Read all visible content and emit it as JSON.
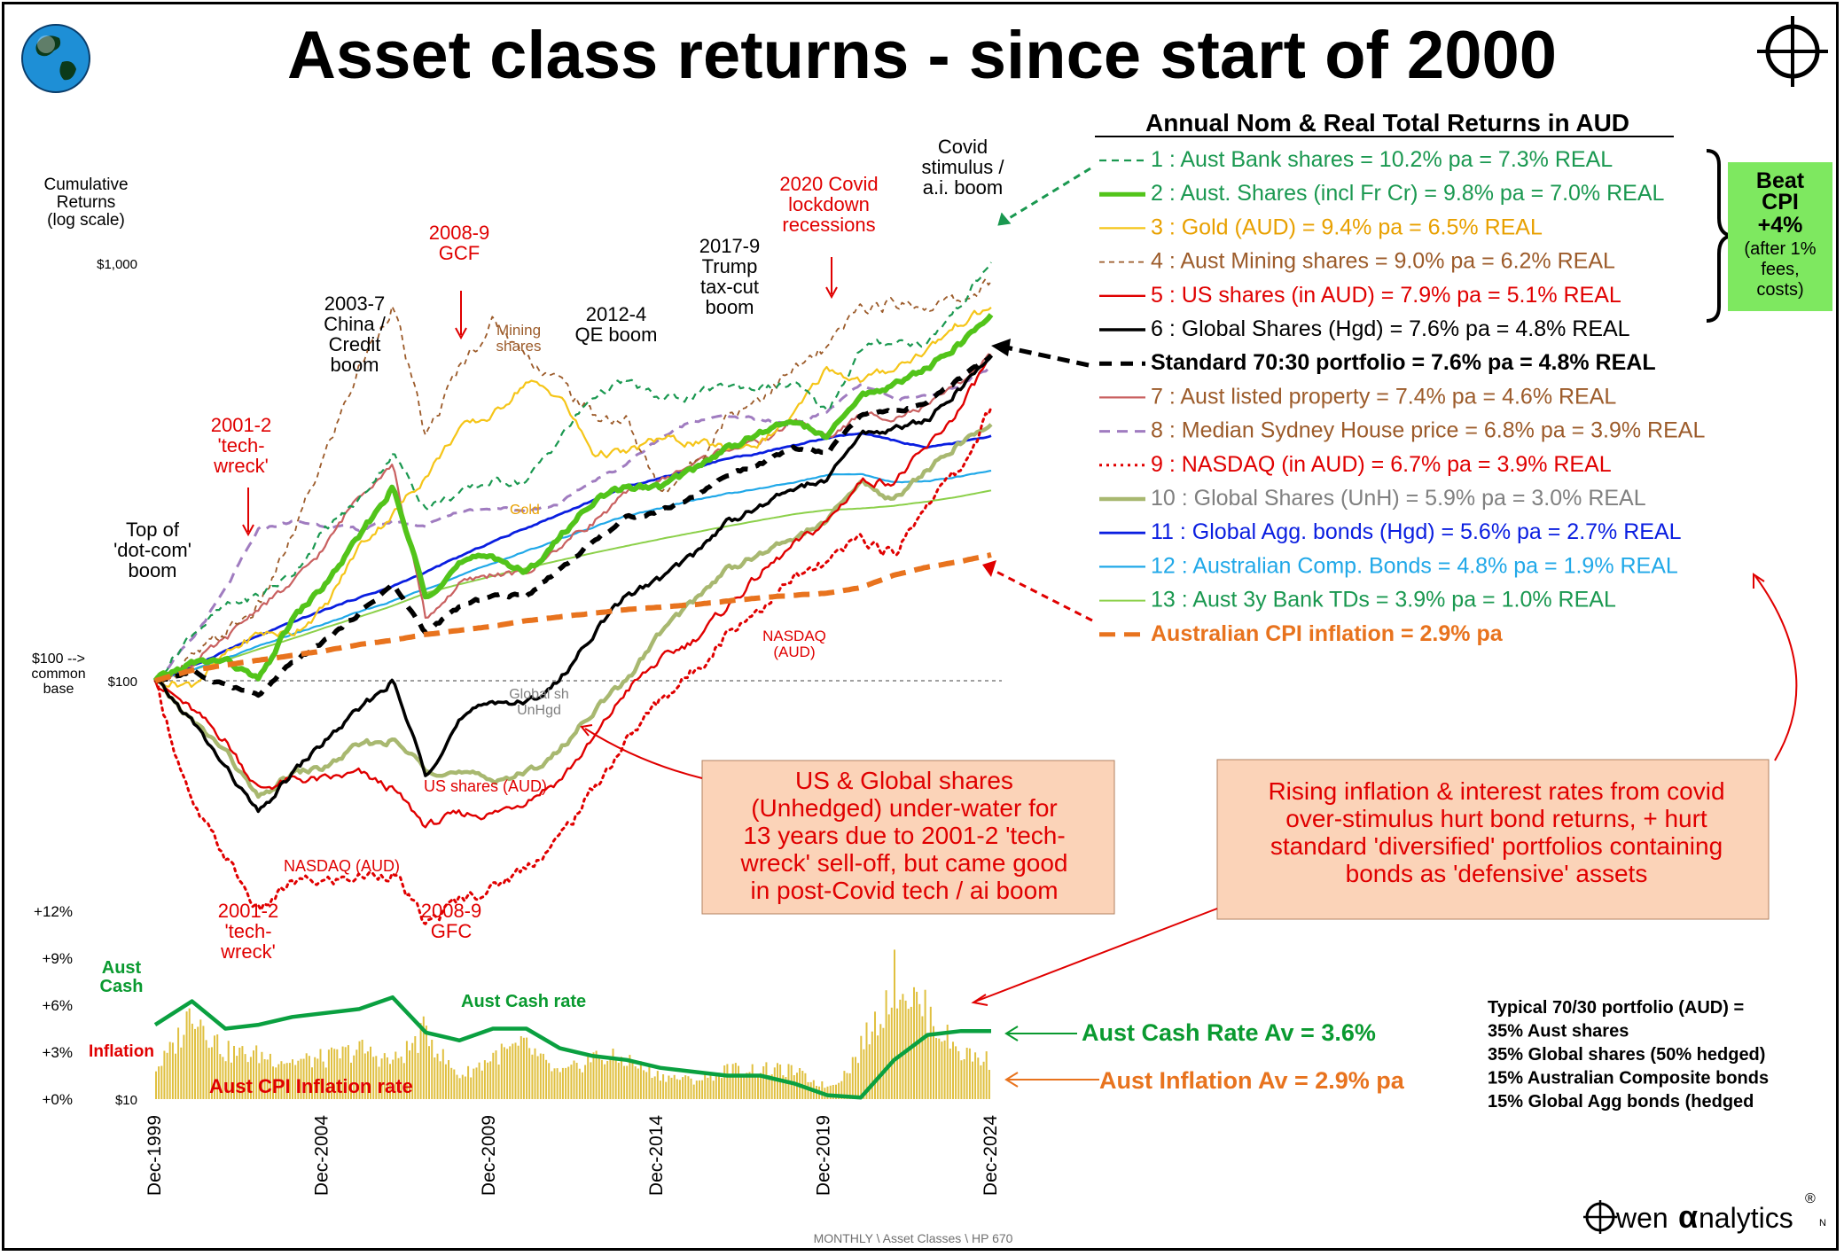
{
  "title": "Asset class returns - since start of 2000",
  "legend_title": "Annual Nom & Real Total Returns in AUD",
  "colors": {
    "bank": "#1a9850",
    "aus_shares": "#52c41a",
    "gold": "#f5c518",
    "mining": "#9c5b2a",
    "us": "#e00000",
    "global_hgd": "#000000",
    "portfolio": "#000000",
    "property": "#c96060",
    "house": "#a07cc0",
    "nasdaq": "#e00000",
    "global_unh": "#a8b870",
    "agg_bonds": "#0a1ee0",
    "comp_bonds": "#20a8e8",
    "td": "#8cd04a",
    "cpi": "#e8731e",
    "cash": "#0aa040",
    "infl_bars": "#e0c040",
    "red_text": "#e00000",
    "orange_text": "#e8731e",
    "beat_box": "#7ee860",
    "note_box": "#fbd3b8"
  },
  "legend": [
    {
      "text": "1 : Aust Bank shares =  10.2% pa = 7.3% REAL",
      "color": "#1a9850",
      "style": "dash",
      "bold": false
    },
    {
      "text": "2 : Aust. Shares (incl Fr Cr) =  9.8% pa = 7.0% REAL",
      "color": "#1a9850",
      "style": "thick",
      "bold": false
    },
    {
      "text": "3 : Gold (AUD) =  9.4% pa = 6.5% REAL",
      "color": "#e8a000",
      "style": "solid",
      "bold": false
    },
    {
      "text": "4 : Aust Mining shares =  9.0% pa = 6.2% REAL",
      "color": "#9c5b2a",
      "style": "dash",
      "bold": false
    },
    {
      "text": "5 : US shares (in AUD) =  7.9% pa = 5.1% REAL",
      "color": "#e00000",
      "style": "solid",
      "bold": false
    },
    {
      "text": "6 : Global Shares (Hgd) =  7.6% pa = 4.8% REAL",
      "color": "#000000",
      "style": "solid",
      "bold": false
    },
    {
      "text": "Standard 70:30 portfolio =  7.6% pa =  4.8% REAL",
      "color": "#000000",
      "style": "bolddash",
      "bold": true
    },
    {
      "text": "7 : Aust listed property =  7.4% pa = 4.6% REAL",
      "color": "#9c5b2a",
      "style": "solid",
      "bold": false
    },
    {
      "text": "8 : Median Sydney House price =  6.8% pa = 3.9% REAL",
      "color": "#9c5b2a",
      "style": "dashpurple",
      "bold": false
    },
    {
      "text": "9 : NASDAQ (in AUD) =  6.7% pa = 3.9% REAL",
      "color": "#e00000",
      "style": "dot",
      "bold": false
    },
    {
      "text": "10 : Global Shares (UnH) =  5.9% pa = 3.0% REAL",
      "color": "#808080",
      "style": "thick",
      "bold": false
    },
    {
      "text": "11 : Global Agg. bonds (Hgd) =  5.6% pa = 2.7% REAL",
      "color": "#0a1ee0",
      "style": "solid",
      "bold": false
    },
    {
      "text": "12 : Australian Comp. Bonds =  4.8% pa = 1.9% REAL",
      "color": "#20a8e8",
      "style": "solid",
      "bold": false
    },
    {
      "text": "13 : Aust 3y Bank TDs =  3.9% pa = 1.0% REAL",
      "color": "#1a9850",
      "style": "solid",
      "bold": false
    },
    {
      "text": "Australian CPI inflation =  2.9% pa",
      "color": "#e8731e",
      "style": "cpi",
      "bold": true
    }
  ],
  "beat_box": [
    "Beat",
    "CPI",
    "+4%",
    "(after 1%",
    "fees,",
    "costs)"
  ],
  "y_axis_title": [
    "Cumulative",
    "Returns",
    "(log scale)"
  ],
  "y_ticks": [
    "$1,000",
    "$100",
    "$10"
  ],
  "base_note": [
    "$100 -->",
    "common",
    "base"
  ],
  "rate_ticks": [
    "+12%",
    "+9%",
    "+6%",
    "+3%",
    "+0%"
  ],
  "x_ticks": [
    "Dec-1999",
    "Dec-2004",
    "Dec-2009",
    "Dec-2014",
    "Dec-2019",
    "Dec-2024"
  ],
  "annotations": {
    "dotcom": [
      "Top of",
      "'dot-com'",
      "boom"
    ],
    "techwreck_top": [
      "2001-2",
      "'tech-",
      "wreck'"
    ],
    "china": [
      "2003-7",
      "China /",
      "Credit",
      "boom"
    ],
    "gcf": [
      "2008-9",
      "GCF"
    ],
    "mining": [
      "Mining",
      "shares"
    ],
    "qe": [
      "2012-4",
      "QE boom"
    ],
    "trump": [
      "2017-9",
      "Trump",
      "tax-cut",
      "boom"
    ],
    "covid_rec": [
      "2020 Covid",
      "lockdown",
      "recessions"
    ],
    "covid_boom": [
      "Covid",
      "stimulus /",
      "a.i. boom"
    ],
    "gold_label": "Gold",
    "global_unhgd": [
      "Global sh",
      "UnHgd"
    ],
    "us_shares": "US shares (AUD)",
    "nasdaq_low": "NASDAQ  (AUD)",
    "nasdaq_high": [
      "NASDAQ",
      "(AUD)"
    ],
    "techwreck_bottom": [
      "2001-2",
      "'tech-",
      "wreck'"
    ],
    "gfc_bottom": [
      "2008-9",
      "GFC"
    ],
    "aust_cash": [
      "Aust",
      "Cash"
    ],
    "inflation_word": "Inflation",
    "cash_rate_label": "Aust  Cash rate",
    "cpi_rate_label": "Aust CPI Inflation rate"
  },
  "note_us": [
    "US & Global shares",
    "(Unhedged)  under-water for",
    "13 years  due to 2001-2 'tech-",
    "wreck' sell-off,  but came good",
    "in post-Covid tech / ai boom"
  ],
  "note_bonds": [
    "Rising inflation & interest rates from covid",
    "over-stimulus hurt bond returns, + hurt",
    "standard 'diversified' portfolios containing",
    "bonds as 'defensive' assets"
  ],
  "cash_av": "Aust Cash Rate  Av =  3.6%",
  "infl_av": "Aust Inflation  Av =  2.9% pa",
  "portfolio_def": [
    "Typical 70/30 portfolio (AUD) =",
    " 35%  Aust shares",
    " 35%  Global shares (50% hedged)",
    " 15%  Australian Composite bonds",
    " 15%  Global Agg bonds (hedged"
  ],
  "footer": "MONTHLY  \\ Asset Classes \\ HP 670",
  "brand": "wen",
  "brand_alpha": "α",
  "brand_rest": "nalytics",
  "brand_reg": "®",
  "brand_n": "N",
  "chart_data": {
    "type": "line",
    "title": "Asset class returns - since start of 2000",
    "ylabel": "Cumulative Returns (log scale)",
    "y_scale": "log",
    "ylim": [
      10,
      1000
    ],
    "x": [
      1999.9,
      2001,
      2002,
      2003,
      2004,
      2005,
      2006,
      2007,
      2008,
      2009,
      2010,
      2011,
      2012,
      2013,
      2014,
      2015,
      2016,
      2017,
      2018,
      2019,
      2020,
      2021,
      2022,
      2023,
      2024,
      2024.9
    ],
    "series": [
      {
        "key": "bank",
        "values": [
          100,
          130,
          150,
          160,
          180,
          230,
          270,
          350,
          260,
          280,
          300,
          300,
          380,
          480,
          520,
          470,
          480,
          510,
          500,
          510,
          440,
          620,
          650,
          640,
          800,
          1000
        ]
      },
      {
        "key": "aus_shares",
        "values": [
          100,
          110,
          112,
          100,
          140,
          170,
          220,
          290,
          160,
          190,
          200,
          180,
          220,
          270,
          290,
          290,
          320,
          360,
          390,
          420,
          380,
          480,
          510,
          560,
          640,
          750
        ]
      },
      {
        "key": "gold",
        "values": [
          100,
          98,
          115,
          130,
          130,
          150,
          210,
          250,
          310,
          400,
          430,
          520,
          480,
          350,
          350,
          380,
          370,
          360,
          370,
          430,
          560,
          520,
          560,
          620,
          720,
          780
        ]
      },
      {
        "key": "mining",
        "values": [
          100,
          112,
          130,
          150,
          220,
          350,
          560,
          800,
          380,
          560,
          720,
          600,
          520,
          430,
          420,
          280,
          330,
          430,
          480,
          550,
          620,
          780,
          800,
          790,
          810,
          900
        ]
      },
      {
        "key": "us",
        "values": [
          100,
          85,
          72,
          55,
          58,
          58,
          60,
          55,
          45,
          48,
          48,
          52,
          58,
          72,
          95,
          112,
          125,
          150,
          180,
          210,
          240,
          300,
          300,
          360,
          450,
          600
        ]
      },
      {
        "key": "global_hgd",
        "values": [
          100,
          80,
          62,
          48,
          60,
          72,
          85,
          100,
          60,
          80,
          90,
          88,
          100,
          130,
          160,
          175,
          200,
          240,
          260,
          290,
          300,
          390,
          400,
          420,
          500,
          600
        ]
      },
      {
        "key": "portfolio",
        "values": [
          100,
          105,
          98,
          92,
          110,
          125,
          145,
          170,
          130,
          150,
          160,
          160,
          185,
          215,
          245,
          255,
          275,
          310,
          330,
          360,
          350,
          430,
          440,
          460,
          530,
          600
        ]
      },
      {
        "key": "property",
        "values": [
          100,
          110,
          125,
          150,
          170,
          210,
          280,
          330,
          140,
          170,
          180,
          180,
          210,
          240,
          280,
          300,
          330,
          360,
          370,
          420,
          380,
          430,
          430,
          450,
          520,
          600
        ]
      },
      {
        "key": "house",
        "values": [
          100,
          125,
          165,
          230,
          240,
          235,
          230,
          240,
          235,
          255,
          260,
          255,
          265,
          300,
          330,
          380,
          420,
          430,
          420,
          410,
          440,
          510,
          470,
          480,
          510,
          560
        ]
      },
      {
        "key": "nasdaq",
        "values": [
          100,
          50,
          38,
          28,
          33,
          33,
          34,
          35,
          26,
          30,
          32,
          36,
          42,
          55,
          72,
          90,
          105,
          130,
          150,
          175,
          190,
          220,
          200,
          270,
          320,
          450
        ]
      },
      {
        "key": "global_unh",
        "values": [
          100,
          80,
          68,
          52,
          60,
          62,
          70,
          72,
          62,
          60,
          58,
          60,
          68,
          85,
          100,
          130,
          155,
          185,
          200,
          220,
          240,
          300,
          270,
          320,
          370,
          410
        ]
      },
      {
        "key": "agg_bonds",
        "values": [
          100,
          108,
          118,
          128,
          138,
          148,
          158,
          168,
          182,
          198,
          215,
          232,
          250,
          270,
          292,
          305,
          322,
          340,
          350,
          365,
          380,
          390,
          375,
          360,
          372,
          385
        ]
      },
      {
        "key": "comp_bonds",
        "values": [
          100,
          106,
          113,
          121,
          129,
          137,
          146,
          155,
          166,
          178,
          191,
          204,
          218,
          233,
          248,
          258,
          270,
          280,
          288,
          298,
          310,
          312,
          298,
          300,
          308,
          318
        ]
      },
      {
        "key": "td",
        "values": [
          100,
          106,
          112,
          119,
          126,
          134,
          142,
          151,
          162,
          170,
          178,
          186,
          194,
          202,
          210,
          218,
          226,
          234,
          242,
          250,
          256,
          258,
          262,
          268,
          276,
          285
        ]
      },
      {
        "key": "cpi",
        "values": [
          100,
          106,
          109,
          112,
          115,
          118,
          122,
          125,
          129,
          132,
          135,
          139,
          142,
          145,
          148,
          150,
          152,
          155,
          158,
          160,
          162,
          167,
          179,
          187,
          193,
          200
        ]
      }
    ],
    "rate_panel": {
      "ylim": [
        0,
        12
      ],
      "cash_rate": [
        4.75,
        6.25,
        4.5,
        4.75,
        5.25,
        5.5,
        5.75,
        6.5,
        4.25,
        3.75,
        4.5,
        4.5,
        3.25,
        2.75,
        2.5,
        2.0,
        1.75,
        1.5,
        1.5,
        1.0,
        0.25,
        0.1,
        2.5,
        4.1,
        4.35,
        4.35
      ],
      "inflation": [
        2.0,
        6.0,
        3.0,
        2.8,
        2.4,
        2.6,
        3.2,
        2.4,
        4.5,
        1.5,
        2.8,
        3.4,
        1.6,
        2.7,
        2.5,
        1.5,
        1.2,
        1.9,
        1.9,
        1.8,
        0.8,
        3.5,
        7.8,
        5.4,
        3.0,
        2.4
      ]
    }
  }
}
